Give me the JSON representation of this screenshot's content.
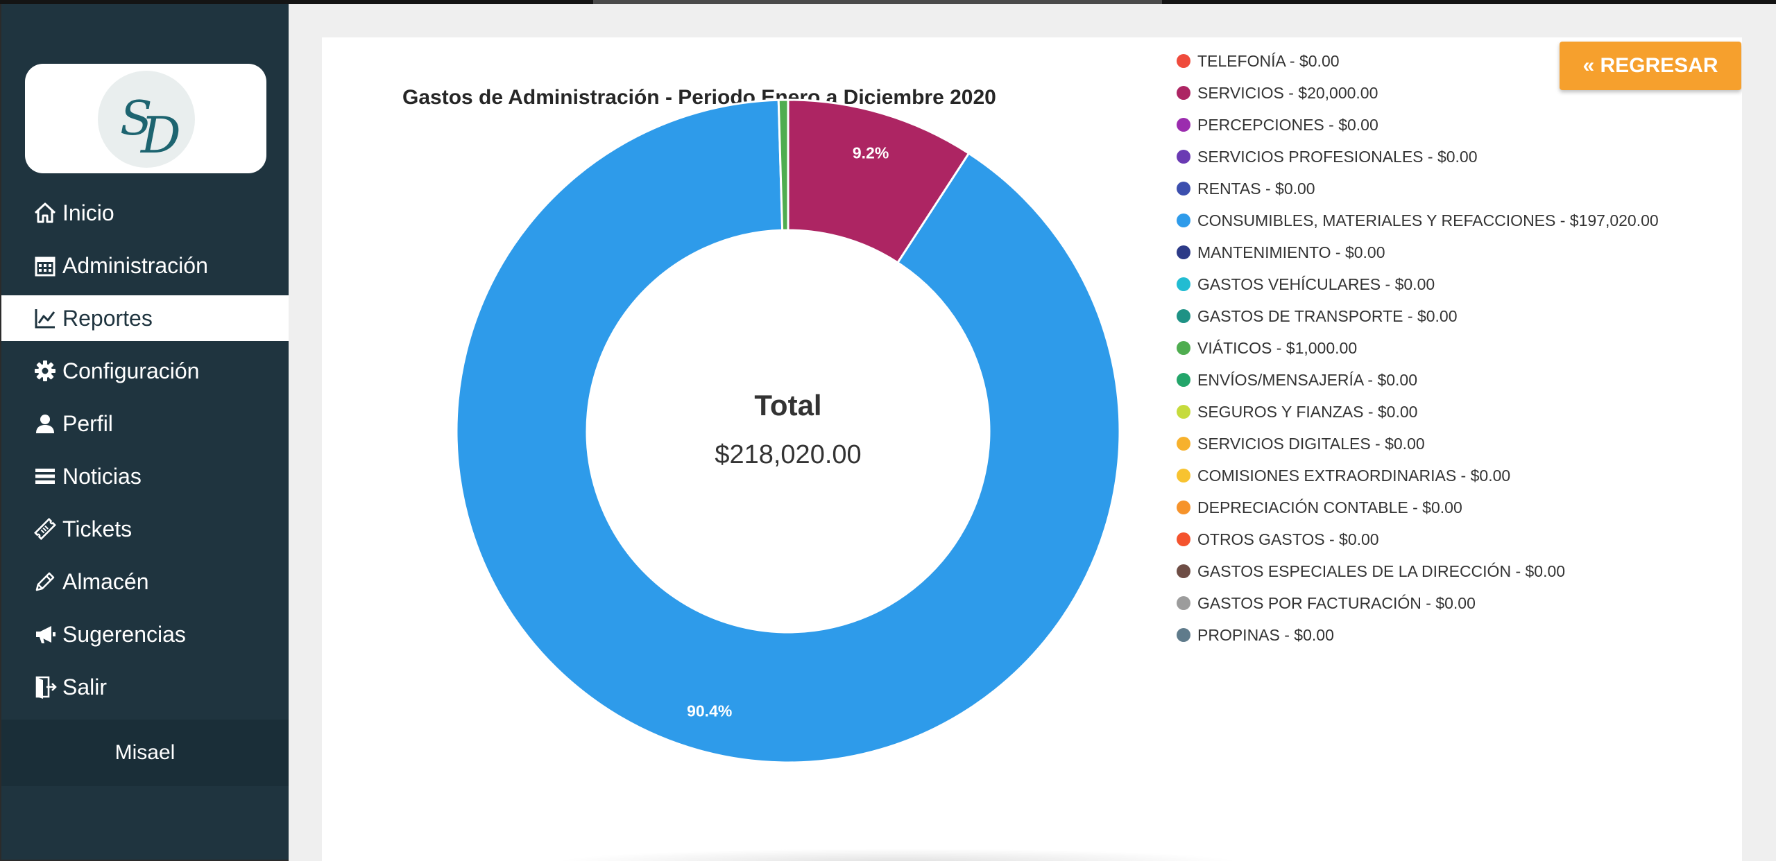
{
  "sidebar": {
    "logo_text": "SD",
    "items": [
      {
        "label": "Inicio",
        "icon": "home-icon"
      },
      {
        "label": "Administración",
        "icon": "calendar-icon"
      },
      {
        "label": "Reportes",
        "icon": "chart-line-icon",
        "active": true
      },
      {
        "label": "Configuración",
        "icon": "gear-icon"
      },
      {
        "label": "Perfil",
        "icon": "user-icon"
      },
      {
        "label": "Noticias",
        "icon": "list-icon"
      },
      {
        "label": "Tickets",
        "icon": "ticket-icon"
      },
      {
        "label": "Almacén",
        "icon": "pencil-icon"
      },
      {
        "label": "Sugerencias",
        "icon": "megaphone-icon"
      },
      {
        "label": "Salir",
        "icon": "exit-door-icon"
      }
    ],
    "user_name": "Misael"
  },
  "main": {
    "title": "Gastos de Administración - Periodo Enero a Diciembre 2020",
    "back_button_label": "« REGRESAR"
  },
  "colors": {
    "sidebar_bg": "#1f343f",
    "accent_orange": "#f6a02d"
  },
  "chart_data": {
    "type": "pie",
    "title": "Gastos de Administración - Periodo Enero a Diciembre 2020",
    "center_title": "Total",
    "center_value": "$218,020.00",
    "legend_position": "right",
    "slices": [
      {
        "label": "TELEFONÍA - $0.00",
        "value": 0,
        "color": "#ef4b3c"
      },
      {
        "label": "SERVICIOS - $20,000.00",
        "value": 20000,
        "color": "#ad2563",
        "pct_label": "9.2%"
      },
      {
        "label": "PERCEPCIONES - $0.00",
        "value": 0,
        "color": "#9b2cae"
      },
      {
        "label": "SERVICIOS PROFESIONALES - $0.00",
        "value": 0,
        "color": "#6a3ab3"
      },
      {
        "label": "RENTAS - $0.00",
        "value": 0,
        "color": "#3c4fae"
      },
      {
        "label": "CONSUMIBLES, MATERIALES Y REFACCIONES - $197,020.00",
        "value": 197020,
        "color": "#2e9bea",
        "pct_label": "90.4%"
      },
      {
        "label": "MANTENIMIENTO - $0.00",
        "value": 0,
        "color": "#2c3a87"
      },
      {
        "label": "GASTOS VEHÍCULARES - $0.00",
        "value": 0,
        "color": "#22bcd2"
      },
      {
        "label": "GASTOS DE TRANSPORTE - $0.00",
        "value": 0,
        "color": "#1e9285"
      },
      {
        "label": "VIÁTICOS - $1,000.00",
        "value": 1000,
        "color": "#4fad50"
      },
      {
        "label": "ENVÍOS/MENSAJERÍA - $0.00",
        "value": 0,
        "color": "#23a56a"
      },
      {
        "label": "SEGUROS Y FIANZAS - $0.00",
        "value": 0,
        "color": "#c6db3c"
      },
      {
        "label": "SERVICIOS DIGITALES - $0.00",
        "value": 0,
        "color": "#f7b12d"
      },
      {
        "label": "COMISIONES EXTRAORDINARIAS - $0.00",
        "value": 0,
        "color": "#f8c330"
      },
      {
        "label": "DEPRECIACIÓN CONTABLE - $0.00",
        "value": 0,
        "color": "#f6932b"
      },
      {
        "label": "OTROS GASTOS - $0.00",
        "value": 0,
        "color": "#f4532e"
      },
      {
        "label": "GASTOS ESPECIALES DE LA DIRECCIÓN - $0.00",
        "value": 0,
        "color": "#6e4d45"
      },
      {
        "label": "GASTOS POR FACTURACIÓN - $0.00",
        "value": 0,
        "color": "#9c9c9c"
      },
      {
        "label": "PROPINAS - $0.00",
        "value": 0,
        "color": "#5f7b8b"
      }
    ]
  }
}
